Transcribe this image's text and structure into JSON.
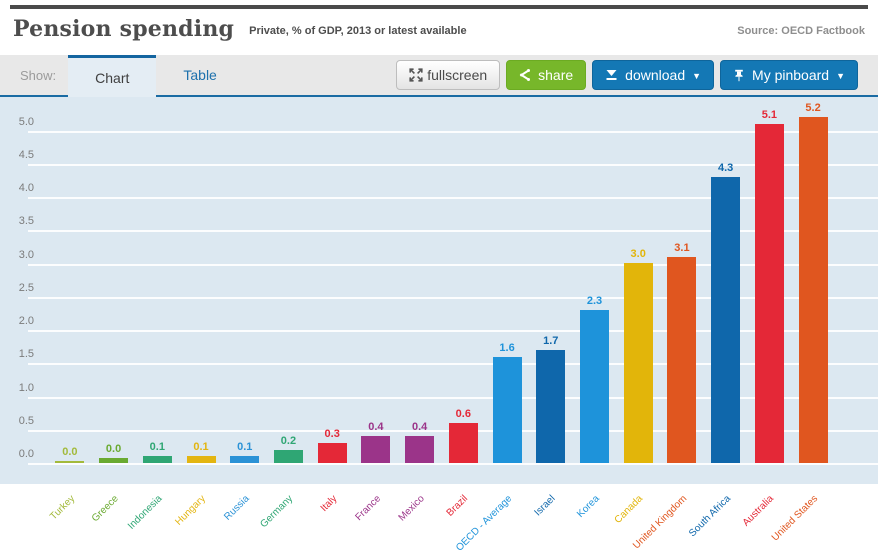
{
  "header": {
    "title": "Pension spending",
    "subtitle": "Private, % of GDP, 2013 or latest available",
    "source": "Source: OECD Factbook"
  },
  "toolbar": {
    "show_label": "Show:",
    "tabs": [
      {
        "label": "Chart",
        "active": true
      },
      {
        "label": "Table",
        "active": false
      }
    ],
    "buttons": {
      "fullscreen_label": "fullscreen",
      "share_label": "share",
      "download_label": "download",
      "pinboard_label": "My pinboard",
      "caret": "▼"
    },
    "colors": {
      "share_green": "#77b72a",
      "action_blue": "#1478b5",
      "tab_line_blue": "#1a6ba3"
    }
  },
  "chart_data": {
    "type": "bar",
    "title": "Pension spending",
    "subtitle": "Private, % of GDP, 2013 or latest available",
    "source": "OECD Factbook",
    "grid": true,
    "ylim": [
      0,
      5.5
    ],
    "ytick_step": 0.5,
    "ytick_labels": [
      "0.0",
      "0.5",
      "1.0",
      "1.5",
      "2.0",
      "2.5",
      "3.0",
      "3.5",
      "4.0",
      "4.5",
      "5.0"
    ],
    "categories": [
      "Turkey",
      "Greece",
      "Indonesia",
      "Hungary",
      "Russia",
      "Germany",
      "Italy",
      "France",
      "Mexico",
      "Brazil",
      "OECD - Average",
      "Israel",
      "Korea",
      "Canada",
      "United Kingdom",
      "South Africa",
      "Australia",
      "United States"
    ],
    "values": [
      0.0,
      0.0,
      0.1,
      0.1,
      0.1,
      0.2,
      0.3,
      0.4,
      0.4,
      0.6,
      1.6,
      1.7,
      2.3,
      3.0,
      3.1,
      4.3,
      5.1,
      5.2
    ],
    "value_labels": [
      "0.0",
      "0.0",
      "0.1",
      "0.1",
      "0.1",
      "0.2",
      "0.3",
      "0.4",
      "0.4",
      "0.6",
      "1.6",
      "1.7",
      "2.3",
      "3.0",
      "3.1",
      "4.3",
      "5.1",
      "5.2"
    ],
    "draw_values": [
      0.03,
      0.08,
      0.1,
      0.1,
      0.1,
      0.2,
      0.3,
      0.4,
      0.4,
      0.6,
      1.6,
      1.7,
      2.3,
      3.0,
      3.1,
      4.3,
      5.1,
      5.2
    ],
    "bar_colors": [
      "#a3ba3b",
      "#6aaa31",
      "#2fa674",
      "#e3b511",
      "#2b92d6",
      "#2fa674",
      "#e42837",
      "#9b3489",
      "#9b3489",
      "#e42837",
      "#1e93da",
      "#0f67ab",
      "#1e93da",
      "#e2b50a",
      "#e0561f",
      "#0f67ab",
      "#e42837",
      "#e0561f"
    ],
    "plot_bg": "#dce8f1",
    "gridline_color": "#ffffff",
    "axis_label_color": "#7b7b7b",
    "legend": "none"
  }
}
